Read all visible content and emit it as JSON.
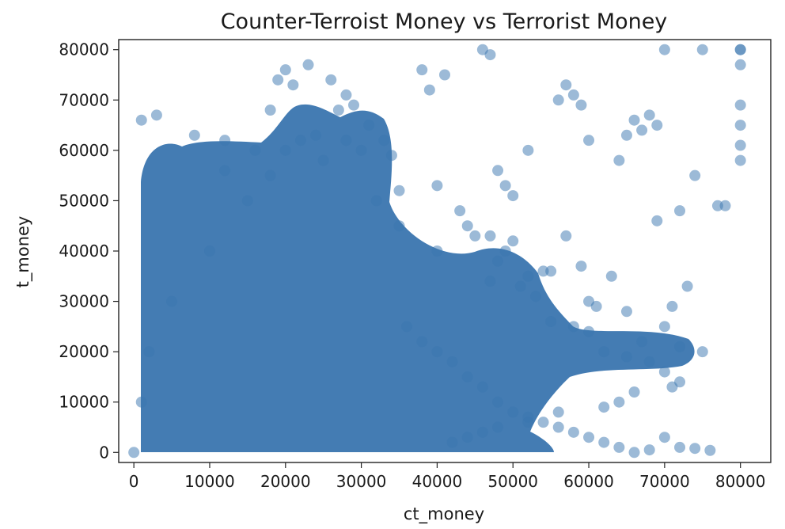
{
  "chart_data": {
    "type": "scatter",
    "title": "Counter-Terroist Money vs Terrorist Money",
    "xlabel": "ct_money",
    "ylabel": "t_money",
    "xlim": [
      -2000,
      84000
    ],
    "ylim": [
      -2000,
      82000
    ],
    "xticks": [
      0,
      10000,
      20000,
      30000,
      40000,
      50000,
      60000,
      70000,
      80000
    ],
    "yticks": [
      0,
      10000,
      20000,
      30000,
      40000,
      50000,
      60000,
      70000,
      80000
    ],
    "xtick_labels": [
      "0",
      "10000",
      "20000",
      "30000",
      "40000",
      "50000",
      "60000",
      "70000",
      "80000"
    ],
    "ytick_labels": [
      "0",
      "10000",
      "20000",
      "30000",
      "40000",
      "50000",
      "60000",
      "70000",
      "80000"
    ],
    "grid": false,
    "legend": "none",
    "marker_color": "#3a75af",
    "marker_alpha": 0.5,
    "points": {
      "x": [
        0,
        1000,
        2000,
        5000,
        10000,
        15000,
        18000,
        20000,
        22000,
        25000,
        28000,
        30000,
        32000,
        35000,
        40000,
        45000,
        50000,
        55000,
        60000,
        65000,
        70000,
        75000,
        80000,
        1000,
        3000,
        8000,
        12000,
        18000,
        19000,
        20000,
        21000,
        23000,
        26000,
        28000,
        29000,
        31000,
        38000,
        39000,
        40000,
        41000,
        46000,
        47000,
        48000,
        49000,
        50000,
        52000,
        56000,
        57000,
        58000,
        59000,
        60000,
        64000,
        65000,
        66000,
        67000,
        68000,
        69000,
        70000,
        72000,
        74000,
        75000,
        77000,
        80000,
        80000,
        80000,
        80000,
        80000,
        80000,
        36000,
        38000,
        40000,
        42000,
        44000,
        46000,
        48000,
        50000,
        52000,
        54000,
        56000,
        58000,
        60000,
        62000,
        64000,
        66000,
        68000,
        70000,
        72000,
        74000,
        76000,
        55000,
        58000,
        60000,
        62000,
        65000,
        68000,
        70000,
        72000,
        71000,
        72000,
        67000,
        66000,
        64000,
        62000,
        56000,
        52000,
        48000,
        46000,
        44000,
        42000,
        47000,
        48000,
        52000,
        12000,
        16000,
        24000,
        27000,
        33000,
        34000,
        35000,
        43000,
        44000,
        47000,
        49000,
        51000,
        53000,
        54000,
        57000,
        59000,
        61000,
        63000,
        69000,
        71000,
        73000,
        78000
      ],
      "y": [
        0,
        10000,
        20000,
        30000,
        40000,
        50000,
        55000,
        60000,
        62000,
        58000,
        62000,
        60000,
        50000,
        45000,
        40000,
        43000,
        42000,
        36000,
        30000,
        28000,
        25000,
        20000,
        80000,
        66000,
        67000,
        63000,
        62000,
        68000,
        74000,
        76000,
        73000,
        77000,
        74000,
        71000,
        69000,
        65000,
        76000,
        72000,
        53000,
        75000,
        80000,
        79000,
        56000,
        53000,
        51000,
        60000,
        70000,
        73000,
        71000,
        69000,
        62000,
        58000,
        63000,
        66000,
        64000,
        67000,
        65000,
        80000,
        48000,
        55000,
        80000,
        49000,
        80000,
        77000,
        69000,
        65000,
        61000,
        58000,
        25000,
        22000,
        20000,
        18000,
        15000,
        13000,
        10000,
        8000,
        7000,
        6000,
        5000,
        4000,
        3000,
        2000,
        1000,
        0,
        500,
        3000,
        1000,
        800,
        400,
        26000,
        25000,
        24000,
        20000,
        19000,
        18000,
        16000,
        14000,
        13000,
        21000,
        22000,
        12000,
        10000,
        9000,
        8000,
        6000,
        5000,
        4000,
        3000,
        2000,
        34000,
        38000,
        35000,
        56000,
        60000,
        63000,
        68000,
        62000,
        59000,
        52000,
        48000,
        45000,
        43000,
        40000,
        33000,
        31000,
        36000,
        43000,
        37000,
        29000,
        35000,
        46000,
        29000,
        33000,
        49000
      ]
    }
  }
}
